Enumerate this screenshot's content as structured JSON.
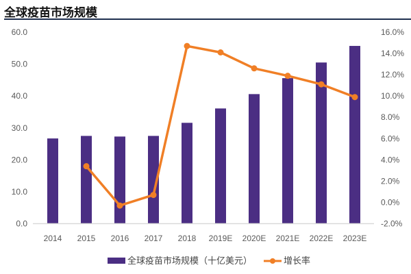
{
  "title": "全球疫苗市场规模",
  "chart_data": {
    "type": "bar+line",
    "title": "全球疫苗市场规模",
    "categories": [
      "2014",
      "2015",
      "2016",
      "2017",
      "2018",
      "2019E",
      "2020E",
      "2021E",
      "2022E",
      "2023E"
    ],
    "series": [
      {
        "name": "全球疫苗市场规模（十亿美元）",
        "type": "bar",
        "axis": "left",
        "color": "#4b2e83",
        "values": [
          26.7,
          27.5,
          27.3,
          27.5,
          31.6,
          36.1,
          40.6,
          45.6,
          50.5,
          55.7
        ]
      },
      {
        "name": "增长率",
        "type": "line",
        "axis": "right",
        "color": "#f07f26",
        "values": [
          null,
          3.4,
          -0.3,
          0.7,
          14.7,
          14.1,
          12.6,
          11.9,
          11.1,
          9.9
        ]
      }
    ],
    "y_left": {
      "range": [
        0,
        60
      ],
      "ticks": [
        "0.0",
        "10.0",
        "20.0",
        "30.0",
        "40.0",
        "50.0",
        "60.0"
      ]
    },
    "y_right": {
      "range": [
        -2,
        16
      ],
      "ticks": [
        "-2.0%",
        "0.0%",
        "2.0%",
        "4.0%",
        "6.0%",
        "8.0%",
        "10.0%",
        "12.0%",
        "14.0%",
        "16.0%"
      ]
    },
    "grid": false,
    "legend": "bottom"
  }
}
